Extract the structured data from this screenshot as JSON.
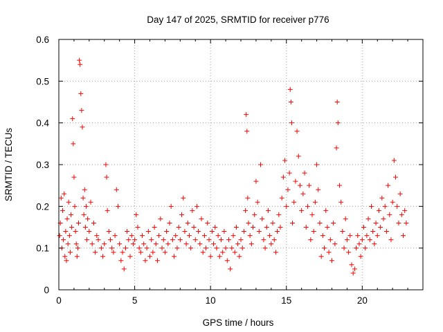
{
  "chart_data": {
    "type": "scatter",
    "title": "Day 147 of 2025, SRMTID for receiver p776",
    "xlabel": "GPS time / hours",
    "ylabel": "SRMTID / TECUs",
    "xlim": [
      0,
      24
    ],
    "ylim": [
      0,
      0.6
    ],
    "xticks": [
      0,
      5,
      10,
      15,
      20
    ],
    "yticks": [
      0,
      0.1,
      0.2,
      0.3,
      0.4,
      0.5,
      0.6
    ],
    "xtick_labels": [
      "0",
      "5",
      "10",
      "15",
      "20"
    ],
    "ytick_labels": [
      "0",
      "0.1",
      "0.2",
      "0.3",
      "0.4",
      "0.5",
      "0.6"
    ],
    "grid": true,
    "marker": "+",
    "color": "#ff0000",
    "series": [
      {
        "name": "SRMTID",
        "points": [
          [
            0.05,
            0.13
          ],
          [
            0.1,
            0.16
          ],
          [
            0.15,
            0.22
          ],
          [
            0.2,
            0.1
          ],
          [
            0.25,
            0.19
          ],
          [
            0.3,
            0.12
          ],
          [
            0.35,
            0.23
          ],
          [
            0.4,
            0.08
          ],
          [
            0.45,
            0.14
          ],
          [
            0.5,
            0.07
          ],
          [
            0.55,
            0.17
          ],
          [
            0.6,
            0.11
          ],
          [
            0.65,
            0.21
          ],
          [
            0.7,
            0.13
          ],
          [
            0.75,
            0.09
          ],
          [
            0.8,
            0.18
          ],
          [
            0.85,
            0.15
          ],
          [
            0.9,
            0.41
          ],
          [
            0.95,
            0.35
          ],
          [
            1.0,
            0.27
          ],
          [
            1.05,
            0.2
          ],
          [
            1.1,
            0.14
          ],
          [
            1.15,
            0.11
          ],
          [
            1.2,
            0.08
          ],
          [
            1.25,
            0.1
          ],
          [
            1.3,
            0.16
          ],
          [
            1.35,
            0.55
          ],
          [
            1.4,
            0.54
          ],
          [
            1.45,
            0.47
          ],
          [
            1.5,
            0.43
          ],
          [
            1.55,
            0.39
          ],
          [
            1.6,
            0.22
          ],
          [
            1.65,
            0.18
          ],
          [
            1.7,
            0.24
          ],
          [
            1.75,
            0.15
          ],
          [
            1.8,
            0.2
          ],
          [
            1.85,
            0.12
          ],
          [
            1.9,
            0.17
          ],
          [
            2.0,
            0.14
          ],
          [
            2.1,
            0.21
          ],
          [
            2.2,
            0.11
          ],
          [
            2.3,
            0.16
          ],
          [
            2.4,
            0.09
          ],
          [
            2.5,
            0.13
          ],
          [
            2.6,
            0.12
          ],
          [
            2.8,
            0.1
          ],
          [
            2.9,
            0.08
          ],
          [
            3.0,
            0.11
          ],
          [
            3.1,
            0.3
          ],
          [
            3.15,
            0.27
          ],
          [
            3.2,
            0.19
          ],
          [
            3.3,
            0.14
          ],
          [
            3.4,
            0.12
          ],
          [
            3.5,
            0.1
          ],
          [
            3.6,
            0.09
          ],
          [
            3.7,
            0.13
          ],
          [
            3.8,
            0.24
          ],
          [
            3.9,
            0.2
          ],
          [
            4.0,
            0.11
          ],
          [
            4.1,
            0.07
          ],
          [
            4.2,
            0.09
          ],
          [
            4.3,
            0.05
          ],
          [
            4.4,
            0.1
          ],
          [
            4.5,
            0.14
          ],
          [
            4.6,
            0.12
          ],
          [
            4.7,
            0.08
          ],
          [
            4.8,
            0.13
          ],
          [
            4.9,
            0.11
          ],
          [
            5.0,
            0.12
          ],
          [
            5.1,
            0.18
          ],
          [
            5.2,
            0.15
          ],
          [
            5.3,
            0.1
          ],
          [
            5.4,
            0.09
          ],
          [
            5.5,
            0.13
          ],
          [
            5.6,
            0.11
          ],
          [
            5.7,
            0.07
          ],
          [
            5.8,
            0.1
          ],
          [
            5.9,
            0.14
          ],
          [
            6.0,
            0.08
          ],
          [
            6.1,
            0.12
          ],
          [
            6.2,
            0.09
          ],
          [
            6.3,
            0.15
          ],
          [
            6.4,
            0.11
          ],
          [
            6.5,
            0.07
          ],
          [
            6.6,
            0.13
          ],
          [
            6.7,
            0.17
          ],
          [
            6.8,
            0.1
          ],
          [
            6.9,
            0.12
          ],
          [
            7.0,
            0.09
          ],
          [
            7.1,
            0.14
          ],
          [
            7.2,
            0.11
          ],
          [
            7.3,
            0.16
          ],
          [
            7.4,
            0.2
          ],
          [
            7.5,
            0.12
          ],
          [
            7.6,
            0.08
          ],
          [
            7.7,
            0.13
          ],
          [
            7.8,
            0.1
          ],
          [
            7.9,
            0.15
          ],
          [
            8.0,
            0.12
          ],
          [
            8.1,
            0.18
          ],
          [
            8.2,
            0.22
          ],
          [
            8.3,
            0.14
          ],
          [
            8.4,
            0.11
          ],
          [
            8.5,
            0.16
          ],
          [
            8.6,
            0.13
          ],
          [
            8.7,
            0.1
          ],
          [
            8.8,
            0.19
          ],
          [
            8.9,
            0.15
          ],
          [
            9.0,
            0.12
          ],
          [
            9.1,
            0.2
          ],
          [
            9.2,
            0.14
          ],
          [
            9.3,
            0.11
          ],
          [
            9.4,
            0.17
          ],
          [
            9.5,
            0.09
          ],
          [
            9.6,
            0.13
          ],
          [
            9.7,
            0.1
          ],
          [
            9.8,
            0.16
          ],
          [
            9.9,
            0.12
          ],
          [
            10.0,
            0.08
          ],
          [
            10.1,
            0.14
          ],
          [
            10.2,
            0.11
          ],
          [
            10.3,
            0.15
          ],
          [
            10.4,
            0.1
          ],
          [
            10.5,
            0.13
          ],
          [
            10.6,
            0.08
          ],
          [
            10.7,
            0.12
          ],
          [
            10.8,
            0.09
          ],
          [
            10.9,
            0.14
          ],
          [
            11.0,
            0.1
          ],
          [
            11.1,
            0.07
          ],
          [
            11.2,
            0.12
          ],
          [
            11.3,
            0.05
          ],
          [
            11.4,
            0.1
          ],
          [
            11.5,
            0.13
          ],
          [
            11.6,
            0.09
          ],
          [
            11.7,
            0.15
          ],
          [
            11.8,
            0.11
          ],
          [
            11.9,
            0.08
          ],
          [
            12.0,
            0.12
          ],
          [
            12.1,
            0.1
          ],
          [
            12.2,
            0.14
          ],
          [
            12.3,
            0.19
          ],
          [
            12.35,
            0.42
          ],
          [
            12.4,
            0.38
          ],
          [
            12.45,
            0.22
          ],
          [
            12.5,
            0.16
          ],
          [
            12.6,
            0.13
          ],
          [
            12.7,
            0.11
          ],
          [
            12.8,
            0.15
          ],
          [
            12.9,
            0.18
          ],
          [
            13.0,
            0.26
          ],
          [
            13.1,
            0.21
          ],
          [
            13.2,
            0.14
          ],
          [
            13.3,
            0.3
          ],
          [
            13.4,
            0.17
          ],
          [
            13.5,
            0.12
          ],
          [
            13.6,
            0.1
          ],
          [
            13.7,
            0.15
          ],
          [
            13.8,
            0.19
          ],
          [
            13.9,
            0.13
          ],
          [
            14.0,
            0.11
          ],
          [
            14.1,
            0.16
          ],
          [
            14.2,
            0.12
          ],
          [
            14.3,
            0.09
          ],
          [
            14.4,
            0.14
          ],
          [
            14.5,
            0.18
          ],
          [
            14.6,
            0.15
          ],
          [
            14.7,
            0.22
          ],
          [
            14.8,
            0.27
          ],
          [
            14.9,
            0.31
          ],
          [
            15.0,
            0.2
          ],
          [
            15.1,
            0.24
          ],
          [
            15.2,
            0.28
          ],
          [
            15.25,
            0.48
          ],
          [
            15.3,
            0.45
          ],
          [
            15.35,
            0.4
          ],
          [
            15.4,
            0.16
          ],
          [
            15.5,
            0.21
          ],
          [
            15.6,
            0.26
          ],
          [
            15.7,
            0.38
          ],
          [
            15.8,
            0.32
          ],
          [
            15.9,
            0.25
          ],
          [
            16.0,
            0.19
          ],
          [
            16.1,
            0.23
          ],
          [
            16.2,
            0.28
          ],
          [
            16.3,
            0.15
          ],
          [
            16.4,
            0.2
          ],
          [
            16.5,
            0.25
          ],
          [
            16.6,
            0.12
          ],
          [
            16.7,
            0.18
          ],
          [
            16.8,
            0.14
          ],
          [
            16.9,
            0.21
          ],
          [
            17.0,
            0.3
          ],
          [
            17.1,
            0.24
          ],
          [
            17.2,
            0.16
          ],
          [
            17.3,
            0.08
          ],
          [
            17.4,
            0.13
          ],
          [
            17.5,
            0.1
          ],
          [
            17.6,
            0.19
          ],
          [
            17.7,
            0.15
          ],
          [
            17.8,
            0.09
          ],
          [
            17.9,
            0.12
          ],
          [
            18.0,
            0.07
          ],
          [
            18.1,
            0.16
          ],
          [
            18.2,
            0.11
          ],
          [
            18.3,
            0.34
          ],
          [
            18.35,
            0.45
          ],
          [
            18.4,
            0.4
          ],
          [
            18.5,
            0.25
          ],
          [
            18.6,
            0.21
          ],
          [
            18.7,
            0.14
          ],
          [
            18.8,
            0.1
          ],
          [
            18.9,
            0.17
          ],
          [
            19.0,
            0.12
          ],
          [
            19.1,
            0.09
          ],
          [
            19.2,
            0.13
          ],
          [
            19.3,
            0.06
          ],
          [
            19.4,
            0.04
          ],
          [
            19.5,
            0.05
          ],
          [
            19.6,
            0.1
          ],
          [
            19.7,
            0.13
          ],
          [
            19.8,
            0.11
          ],
          [
            19.9,
            0.08
          ],
          [
            20.0,
            0.12
          ],
          [
            20.1,
            0.15
          ],
          [
            20.2,
            0.1
          ],
          [
            20.3,
            0.13
          ],
          [
            20.4,
            0.17
          ],
          [
            20.5,
            0.12
          ],
          [
            20.6,
            0.2
          ],
          [
            20.7,
            0.14
          ],
          [
            20.8,
            0.11
          ],
          [
            20.9,
            0.16
          ],
          [
            21.0,
            0.13
          ],
          [
            21.1,
            0.19
          ],
          [
            21.2,
            0.15
          ],
          [
            21.3,
            0.22
          ],
          [
            21.4,
            0.17
          ],
          [
            21.5,
            0.2
          ],
          [
            21.6,
            0.14
          ],
          [
            21.7,
            0.25
          ],
          [
            21.8,
            0.18
          ],
          [
            21.9,
            0.12
          ],
          [
            22.0,
            0.21
          ],
          [
            22.1,
            0.31
          ],
          [
            22.2,
            0.27
          ],
          [
            22.3,
            0.2
          ],
          [
            22.4,
            0.16
          ],
          [
            22.5,
            0.23
          ],
          [
            22.6,
            0.18
          ],
          [
            22.7,
            0.13
          ],
          [
            22.8,
            0.19
          ],
          [
            22.9,
            0.16
          ]
        ]
      }
    ]
  }
}
